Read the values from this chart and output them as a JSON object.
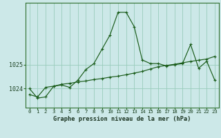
{
  "title": "Graphe pression niveau de la mer (hPa)",
  "bg_color": "#cce8e8",
  "grid_color": "#99ccbb",
  "line_color": "#1a5c1a",
  "x_labels": [
    "0",
    "1",
    "2",
    "3",
    "4",
    "5",
    "6",
    "7",
    "8",
    "9",
    "10",
    "11",
    "12",
    "13",
    "14",
    "15",
    "16",
    "17",
    "18",
    "19",
    "20",
    "21",
    "22",
    "23"
  ],
  "series1": [
    1024.0,
    1023.6,
    1023.65,
    1024.1,
    1024.15,
    1024.05,
    1024.35,
    1024.8,
    1025.05,
    1025.65,
    1026.25,
    1027.2,
    1027.2,
    1026.6,
    1025.2,
    1025.05,
    1025.05,
    1024.95,
    1025.0,
    1025.05,
    1025.85,
    1024.85,
    1025.15,
    1024.35
  ],
  "series2": [
    1023.75,
    1023.65,
    1024.05,
    1024.1,
    1024.18,
    1024.22,
    1024.28,
    1024.32,
    1024.38,
    1024.42,
    1024.48,
    1024.52,
    1024.58,
    1024.65,
    1024.72,
    1024.82,
    1024.92,
    1024.97,
    1025.02,
    1025.08,
    1025.14,
    1025.19,
    1025.24,
    1025.35
  ],
  "yticks": [
    1024,
    1025
  ],
  "ylim": [
    1023.2,
    1027.6
  ],
  "xlim": [
    -0.5,
    23.5
  ]
}
